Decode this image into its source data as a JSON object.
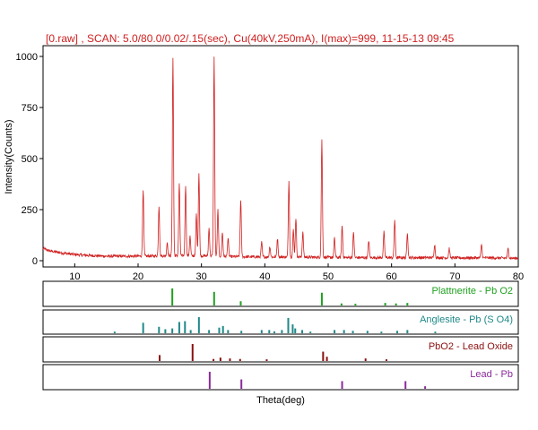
{
  "chart_data": {
    "type": "line",
    "title": "[0.raw] , SCAN: 5.0/80.0/0.02/.15(sec), Cu(40kV,250mA), I(max)=999, 11-15-13 09:45",
    "xlabel": "Theta(deg)",
    "ylabel": "Intensity(Counts)",
    "xlim": [
      5,
      80
    ],
    "ylim": [
      0,
      1000
    ],
    "x_ticks": [
      "10",
      "20",
      "30",
      "40",
      "50",
      "60",
      "70",
      "80"
    ],
    "y_ticks": [
      "0",
      "250",
      "500",
      "750",
      "1000"
    ],
    "grid": false,
    "series": [
      {
        "color": "#d02020",
        "background": [
          [
            5,
            60
          ],
          [
            6,
            48
          ],
          [
            8,
            38
          ],
          [
            10,
            30
          ],
          [
            12,
            26
          ],
          [
            15,
            22
          ],
          [
            20,
            22
          ],
          [
            25,
            24
          ],
          [
            30,
            24
          ],
          [
            35,
            20
          ],
          [
            40,
            18
          ],
          [
            45,
            18
          ],
          [
            50,
            16
          ],
          [
            55,
            15
          ],
          [
            60,
            15
          ],
          [
            65,
            15
          ],
          [
            70,
            14
          ],
          [
            75,
            14
          ],
          [
            80,
            12
          ]
        ],
        "peaks": [
          {
            "x": 20.8,
            "y": 350
          },
          {
            "x": 23.3,
            "y": 270
          },
          {
            "x": 24.6,
            "y": 90
          },
          {
            "x": 25.5,
            "y": 995
          },
          {
            "x": 26.5,
            "y": 380
          },
          {
            "x": 27.5,
            "y": 370
          },
          {
            "x": 28.2,
            "y": 120
          },
          {
            "x": 29.2,
            "y": 230
          },
          {
            "x": 29.6,
            "y": 430
          },
          {
            "x": 31.2,
            "y": 160
          },
          {
            "x": 32.0,
            "y": 995
          },
          {
            "x": 32.6,
            "y": 250
          },
          {
            "x": 33.3,
            "y": 140
          },
          {
            "x": 34.2,
            "y": 110
          },
          {
            "x": 36.2,
            "y": 300
          },
          {
            "x": 39.5,
            "y": 90
          },
          {
            "x": 40.8,
            "y": 70
          },
          {
            "x": 42.0,
            "y": 110
          },
          {
            "x": 43.8,
            "y": 390
          },
          {
            "x": 44.5,
            "y": 150
          },
          {
            "x": 44.9,
            "y": 210
          },
          {
            "x": 46.0,
            "y": 140
          },
          {
            "x": 49.0,
            "y": 590
          },
          {
            "x": 51.0,
            "y": 110
          },
          {
            "x": 52.2,
            "y": 170
          },
          {
            "x": 54.0,
            "y": 140
          },
          {
            "x": 56.4,
            "y": 100
          },
          {
            "x": 58.8,
            "y": 140
          },
          {
            "x": 60.5,
            "y": 200
          },
          {
            "x": 62.5,
            "y": 140
          },
          {
            "x": 66.8,
            "y": 80
          },
          {
            "x": 69.1,
            "y": 60
          },
          {
            "x": 74.2,
            "y": 80
          },
          {
            "x": 78.4,
            "y": 60
          }
        ]
      }
    ],
    "reference_patterns": [
      {
        "name": "Plattnerite - Pb O2",
        "color": "#20a020",
        "lines": [
          {
            "x": 25.4,
            "h": 1.0
          },
          {
            "x": 32.0,
            "h": 0.8
          },
          {
            "x": 36.2,
            "h": 0.25
          },
          {
            "x": 49.0,
            "h": 0.75
          },
          {
            "x": 52.1,
            "h": 0.12
          },
          {
            "x": 54.3,
            "h": 0.1
          },
          {
            "x": 59.0,
            "h": 0.15
          },
          {
            "x": 60.7,
            "h": 0.12
          },
          {
            "x": 62.5,
            "h": 0.15
          }
        ]
      },
      {
        "name": "Anglesite - Pb (S O4)",
        "color": "#208888",
        "lines": [
          {
            "x": 16.3,
            "h": 0.1
          },
          {
            "x": 20.8,
            "h": 0.65
          },
          {
            "x": 23.3,
            "h": 0.4
          },
          {
            "x": 24.3,
            "h": 0.25
          },
          {
            "x": 25.4,
            "h": 0.3
          },
          {
            "x": 26.5,
            "h": 0.7
          },
          {
            "x": 27.4,
            "h": 0.75
          },
          {
            "x": 28.3,
            "h": 0.2
          },
          {
            "x": 29.6,
            "h": 1.0
          },
          {
            "x": 31.2,
            "h": 0.2
          },
          {
            "x": 32.8,
            "h": 0.35
          },
          {
            "x": 33.4,
            "h": 0.45
          },
          {
            "x": 34.2,
            "h": 0.2
          },
          {
            "x": 36.3,
            "h": 0.15
          },
          {
            "x": 39.5,
            "h": 0.2
          },
          {
            "x": 40.7,
            "h": 0.2
          },
          {
            "x": 41.5,
            "h": 0.12
          },
          {
            "x": 42.7,
            "h": 0.2
          },
          {
            "x": 43.7,
            "h": 0.95
          },
          {
            "x": 44.4,
            "h": 0.55
          },
          {
            "x": 44.8,
            "h": 0.3
          },
          {
            "x": 45.9,
            "h": 0.2
          },
          {
            "x": 47.2,
            "h": 0.1
          },
          {
            "x": 51.0,
            "h": 0.2
          },
          {
            "x": 52.5,
            "h": 0.2
          },
          {
            "x": 53.9,
            "h": 0.15
          },
          {
            "x": 56.2,
            "h": 0.15
          },
          {
            "x": 58.4,
            "h": 0.1
          },
          {
            "x": 60.9,
            "h": 0.15
          },
          {
            "x": 62.5,
            "h": 0.2
          },
          {
            "x": 66.9,
            "h": 0.1
          }
        ]
      },
      {
        "name": "PbO2 - Lead Oxide",
        "color": "#8b1010",
        "lines": [
          {
            "x": 23.4,
            "h": 0.35
          },
          {
            "x": 28.6,
            "h": 1.0
          },
          {
            "x": 31.9,
            "h": 0.12
          },
          {
            "x": 33.0,
            "h": 0.2
          },
          {
            "x": 34.5,
            "h": 0.15
          },
          {
            "x": 36.1,
            "h": 0.12
          },
          {
            "x": 40.3,
            "h": 0.1
          },
          {
            "x": 49.2,
            "h": 0.55
          },
          {
            "x": 49.8,
            "h": 0.25
          },
          {
            "x": 55.9,
            "h": 0.15
          },
          {
            "x": 59.2,
            "h": 0.1
          }
        ]
      },
      {
        "name": "Lead - Pb",
        "color": "#8a2a9a",
        "lines": [
          {
            "x": 31.3,
            "h": 1.0
          },
          {
            "x": 36.3,
            "h": 0.55
          },
          {
            "x": 52.2,
            "h": 0.45
          },
          {
            "x": 62.2,
            "h": 0.45
          },
          {
            "x": 65.3,
            "h": 0.15
          }
        ]
      }
    ]
  }
}
